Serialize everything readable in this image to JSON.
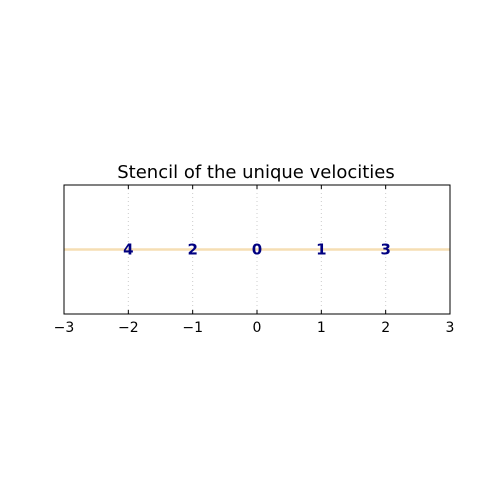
{
  "chart_data": {
    "type": "scatter",
    "title": "Stencil of the unique velocities",
    "xlabel": "",
    "ylabel": "",
    "xlim": [
      -3,
      3
    ],
    "ylim": [
      -1,
      1
    ],
    "xticks": [
      -3,
      -2,
      -1,
      0,
      1,
      2,
      3
    ],
    "xtick_labels": [
      "−3",
      "−2",
      "−1",
      "0",
      "1",
      "2",
      "3"
    ],
    "grid": "vertical dotted",
    "reference_line_y": 0,
    "points": [
      {
        "x": -2,
        "y": 0,
        "label": "4"
      },
      {
        "x": -1,
        "y": 0,
        "label": "2"
      },
      {
        "x": 0,
        "y": 0,
        "label": "0"
      },
      {
        "x": 1,
        "y": 0,
        "label": "1"
      },
      {
        "x": 2,
        "y": 0,
        "label": "3"
      }
    ],
    "colors": {
      "point_label": "#000080",
      "reference_line": "#f5deb3",
      "grid": "#cccccc",
      "axes": "#000000"
    }
  }
}
